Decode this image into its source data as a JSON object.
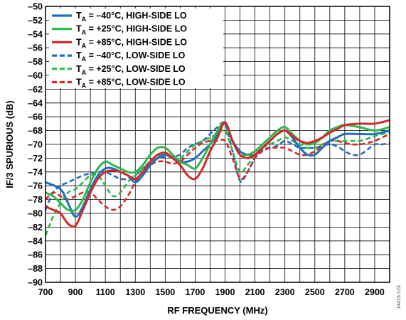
{
  "figure_id": "14415-123",
  "chart_data": {
    "type": "line",
    "title": "",
    "xlabel": "RF FREQUENCY (MHz)",
    "ylabel": "IF/3 SPURIOUS (dB)",
    "xlim": [
      700,
      3000
    ],
    "ylim": [
      -90,
      -50
    ],
    "x_ticks": [
      700,
      900,
      1100,
      1300,
      1500,
      1700,
      1900,
      2100,
      2300,
      2500,
      2700,
      2900
    ],
    "y_ticks": [
      -90,
      -88,
      -86,
      -84,
      -82,
      -80,
      -78,
      -76,
      -74,
      -72,
      -70,
      -68,
      -66,
      -64,
      -62,
      -60,
      -58,
      -56,
      -54,
      -52,
      -50
    ],
    "grid": true,
    "legend_position": "top-left",
    "series": [
      {
        "label_pre": "T",
        "label_sub": "A",
        "label_post": " = –40°C, HIGH-SIDE LO",
        "color": "#1f6fbf",
        "dash": "solid",
        "x": [
          700,
          800,
          850,
          900,
          950,
          1000,
          1050,
          1100,
          1150,
          1200,
          1250,
          1300,
          1350,
          1400,
          1450,
          1500,
          1550,
          1600,
          1650,
          1700,
          1750,
          1800,
          1850,
          1900,
          1950,
          2000,
          2050,
          2100,
          2150,
          2200,
          2250,
          2300,
          2350,
          2400,
          2450,
          2500,
          2550,
          2600,
          2650,
          2700,
          2800,
          2900,
          3000
        ],
        "y": [
          -75.5,
          -76.5,
          -78.5,
          -80.5,
          -79,
          -76.5,
          -74.5,
          -73.5,
          -73.5,
          -74,
          -74.5,
          -75.5,
          -74.5,
          -73,
          -72,
          -71.5,
          -72,
          -72.5,
          -72.5,
          -72,
          -71,
          -70,
          -68.5,
          -67,
          -69.5,
          -71,
          -71.5,
          -71.5,
          -70.5,
          -69.5,
          -68.5,
          -68,
          -69,
          -70.5,
          -71.5,
          -71.5,
          -70.5,
          -69.5,
          -69,
          -68.5,
          -68.5,
          -68.5,
          -68
        ]
      },
      {
        "label_pre": "T",
        "label_sub": "A",
        "label_post": " = +25°C, HIGH-SIDE LO",
        "color": "#2db84b",
        "dash": "solid",
        "x": [
          700,
          750,
          800,
          850,
          900,
          950,
          1000,
          1050,
          1100,
          1150,
          1200,
          1250,
          1300,
          1350,
          1400,
          1450,
          1500,
          1550,
          1600,
          1650,
          1700,
          1750,
          1800,
          1850,
          1900,
          1950,
          2000,
          2050,
          2100,
          2150,
          2200,
          2250,
          2300,
          2350,
          2400,
          2450,
          2500,
          2550,
          2600,
          2650,
          2700,
          2800,
          2900,
          3000
        ],
        "y": [
          -77,
          -77.5,
          -78.5,
          -79.5,
          -79.5,
          -78,
          -75.5,
          -73.5,
          -72.5,
          -73,
          -73.5,
          -74,
          -74,
          -73,
          -71.5,
          -70.5,
          -70.5,
          -71.5,
          -72.5,
          -73,
          -73.5,
          -72,
          -70,
          -68,
          -66.8,
          -69.5,
          -71.5,
          -71.5,
          -71,
          -70,
          -69,
          -68,
          -67.5,
          -68.5,
          -69.5,
          -70,
          -69.8,
          -69,
          -68,
          -67.5,
          -67.2,
          -67.5,
          -68,
          -67.5
        ]
      },
      {
        "label_pre": "T",
        "label_sub": "A",
        "label_post": " = +85°C, HIGH-SIDE LO",
        "color": "#d62728",
        "dash": "solid",
        "x": [
          700,
          750,
          800,
          850,
          900,
          950,
          1000,
          1050,
          1100,
          1150,
          1200,
          1250,
          1300,
          1350,
          1400,
          1450,
          1500,
          1550,
          1600,
          1650,
          1700,
          1750,
          1800,
          1850,
          1900,
          1950,
          2000,
          2050,
          2100,
          2150,
          2200,
          2250,
          2300,
          2350,
          2400,
          2450,
          2500,
          2550,
          2600,
          2650,
          2700,
          2800,
          2900,
          3000
        ],
        "y": [
          -79,
          -79.5,
          -80,
          -81.5,
          -81.8,
          -79.5,
          -77,
          -75,
          -74,
          -73.8,
          -74,
          -74.5,
          -75,
          -74,
          -72.5,
          -71.5,
          -71.2,
          -72,
          -73,
          -74.5,
          -75,
          -73.5,
          -71,
          -69,
          -66.8,
          -69.5,
          -71.5,
          -72,
          -71.5,
          -70.5,
          -69.5,
          -68.5,
          -68,
          -68.8,
          -69.5,
          -69.8,
          -69.5,
          -69,
          -68.3,
          -67.8,
          -67.2,
          -67,
          -67,
          -66.5
        ]
      },
      {
        "label_pre": "T",
        "label_sub": "A",
        "label_post": " = –40°C, LOW-SIDE LO",
        "color": "#1f6fbf",
        "dash": "dashed",
        "x": [
          700,
          750,
          800,
          850,
          900,
          950,
          1000,
          1050,
          1100,
          1150,
          1200,
          1250,
          1300,
          1350,
          1400,
          1450,
          1500,
          1550,
          1600,
          1650,
          1700,
          1750,
          1800,
          1850,
          1900,
          1950,
          2000,
          2050,
          2100,
          2150,
          2200,
          2250,
          2300,
          2350,
          2400,
          2450,
          2500,
          2550,
          2600,
          2650,
          2700,
          2750,
          2800,
          2850,
          2900,
          2950,
          3000
        ],
        "y": [
          -79.5,
          -77,
          -76,
          -75.5,
          -75,
          -74.5,
          -74.2,
          -74,
          -74,
          -74.5,
          -75,
          -75,
          -74.5,
          -73.5,
          -72.5,
          -72,
          -71.8,
          -71.8,
          -71.5,
          -70.5,
          -70,
          -69.5,
          -68.5,
          -67.5,
          -67,
          -71,
          -75.3,
          -74,
          -72,
          -70.8,
          -70.5,
          -70.2,
          -69.5,
          -70,
          -70.5,
          -70.5,
          -70.5,
          -70.2,
          -70,
          -70.3,
          -71,
          -71.5,
          -71.5,
          -70.8,
          -70,
          -70,
          -69.8
        ]
      },
      {
        "label_pre": "T",
        "label_sub": "A",
        "label_post": " = +25°C, LOW-SIDE LO",
        "color": "#2db84b",
        "dash": "dashed",
        "x": [
          700,
          750,
          800,
          850,
          900,
          950,
          1000,
          1050,
          1100,
          1150,
          1200,
          1250,
          1300,
          1350,
          1400,
          1450,
          1500,
          1550,
          1600,
          1650,
          1700,
          1750,
          1800,
          1850,
          1900,
          1950,
          2000,
          2050,
          2100,
          2150,
          2200,
          2250,
          2300,
          2350,
          2400,
          2450,
          2500,
          2550,
          2600,
          2650,
          2700,
          2750,
          2800,
          2850,
          2900,
          2950,
          3000
        ],
        "y": [
          -83.2,
          -80.5,
          -78.5,
          -77,
          -76.5,
          -75.5,
          -74.5,
          -74.5,
          -76,
          -77.5,
          -77,
          -75.5,
          -74.5,
          -73.5,
          -72.5,
          -71.8,
          -71.5,
          -72,
          -72,
          -71,
          -70,
          -69.5,
          -69,
          -68.5,
          -68,
          -71,
          -74,
          -73,
          -71.5,
          -70.5,
          -70,
          -69.5,
          -69,
          -69.5,
          -70,
          -70.5,
          -70.5,
          -70,
          -69.5,
          -69.5,
          -69.5,
          -69.5,
          -69.5,
          -69.2,
          -68.8,
          -68.5,
          -68.3
        ]
      },
      {
        "label_pre": "T",
        "label_sub": "A",
        "label_post": " = +85°C, LOW-SIDE LO",
        "color": "#d62728",
        "dash": "dashed",
        "x": [
          700,
          750,
          800,
          850,
          900,
          950,
          1000,
          1050,
          1100,
          1150,
          1200,
          1250,
          1300,
          1350,
          1400,
          1450,
          1500,
          1550,
          1600,
          1650,
          1700,
          1750,
          1800,
          1850,
          1900,
          1950,
          2000,
          2050,
          2100,
          2150,
          2200,
          2250,
          2300,
          2350,
          2400,
          2450,
          2500,
          2550,
          2600,
          2650,
          2700,
          2750,
          2800,
          2850,
          2900,
          2950,
          3000
        ],
        "y": [
          -78,
          -77,
          -77.5,
          -78,
          -77.5,
          -77,
          -77,
          -78,
          -79,
          -79.5,
          -79,
          -77.5,
          -75.5,
          -74,
          -73,
          -72.5,
          -72.5,
          -72.8,
          -72.5,
          -71.5,
          -70.5,
          -69.8,
          -69.5,
          -69.5,
          -69.5,
          -72,
          -75,
          -74,
          -72,
          -71,
          -70.5,
          -70.5,
          -70.5,
          -71,
          -71.5,
          -71.5,
          -71,
          -70.2,
          -69.5,
          -69.5,
          -69.8,
          -70,
          -70,
          -69.8,
          -69.5,
          -69,
          -68.5
        ]
      }
    ]
  }
}
